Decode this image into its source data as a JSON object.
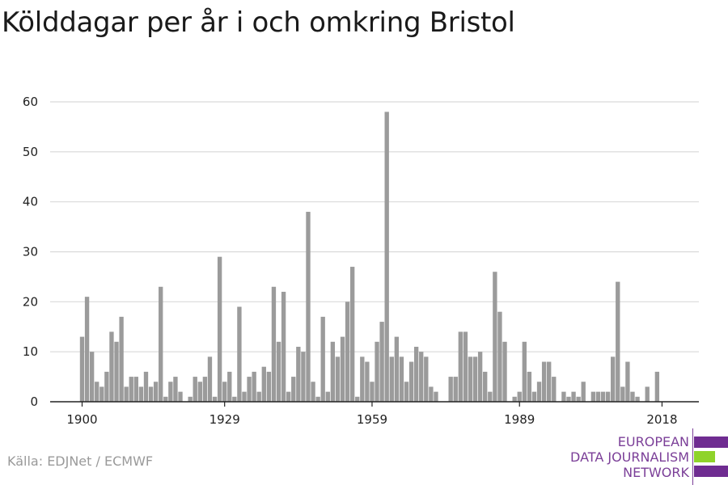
{
  "title": "Kölddagar per år i och omkring Bristol",
  "source": "Källa: EDJNet / ECMWF",
  "logo": {
    "lines": [
      "EUROPEAN",
      "DATA JOURNALISM",
      "NETWORK"
    ],
    "colors": {
      "purple": "#6f2c91",
      "green": "#8fd32a",
      "text": "#7b3f98"
    }
  },
  "colors": {
    "bar": "#9b9b9b",
    "grid": "#d9d9d9",
    "axis": "#222222",
    "text": "#222222"
  },
  "chart_data": {
    "type": "bar",
    "title": "Kölddagar per år i och omkring Bristol",
    "xlabel": "",
    "ylabel": "",
    "ylim": [
      0,
      60
    ],
    "yticks": [
      0,
      10,
      20,
      30,
      40,
      50,
      60
    ],
    "xticks": [
      1900,
      1929,
      1959,
      1989,
      2018
    ],
    "xlim": [
      1893.5,
      2025.5
    ],
    "grid": true,
    "x": [
      1900,
      1901,
      1902,
      1903,
      1904,
      1905,
      1906,
      1907,
      1908,
      1909,
      1910,
      1911,
      1912,
      1913,
      1914,
      1915,
      1916,
      1917,
      1918,
      1919,
      1920,
      1921,
      1922,
      1923,
      1924,
      1925,
      1926,
      1927,
      1928,
      1929,
      1930,
      1931,
      1932,
      1933,
      1934,
      1935,
      1936,
      1937,
      1938,
      1939,
      1940,
      1941,
      1942,
      1943,
      1944,
      1945,
      1946,
      1947,
      1948,
      1949,
      1950,
      1951,
      1952,
      1953,
      1954,
      1955,
      1956,
      1957,
      1958,
      1959,
      1960,
      1961,
      1962,
      1963,
      1964,
      1965,
      1966,
      1967,
      1968,
      1969,
      1970,
      1971,
      1972,
      1973,
      1974,
      1975,
      1976,
      1977,
      1978,
      1979,
      1980,
      1981,
      1982,
      1983,
      1984,
      1985,
      1986,
      1987,
      1988,
      1989,
      1990,
      1991,
      1992,
      1993,
      1994,
      1995,
      1996,
      1997,
      1998,
      1999,
      2000,
      2001,
      2002,
      2003,
      2004,
      2005,
      2006,
      2007,
      2008,
      2009,
      2010,
      2011,
      2012,
      2013,
      2014,
      2015,
      2016,
      2017,
      2018,
      2019
    ],
    "values": [
      13,
      21,
      10,
      4,
      3,
      6,
      14,
      12,
      17,
      3,
      5,
      5,
      3,
      6,
      3,
      4,
      23,
      1,
      4,
      5,
      2,
      0,
      1,
      5,
      4,
      5,
      9,
      1,
      29,
      4,
      6,
      1,
      19,
      2,
      5,
      6,
      2,
      7,
      6,
      23,
      12,
      22,
      2,
      5,
      11,
      10,
      38,
      4,
      1,
      17,
      2,
      12,
      9,
      13,
      20,
      27,
      1,
      9,
      8,
      4,
      12,
      16,
      58,
      9,
      13,
      9,
      4,
      8,
      11,
      10,
      9,
      3,
      2,
      0,
      0,
      5,
      5,
      14,
      14,
      9,
      9,
      10,
      6,
      2,
      26,
      18,
      12,
      0,
      1,
      2,
      12,
      6,
      2,
      4,
      8,
      8,
      5,
      0,
      2,
      1,
      2,
      1,
      4,
      0,
      2,
      2,
      2,
      2,
      9,
      24,
      3,
      8,
      2,
      1,
      0,
      3,
      0,
      6,
      0,
      0
    ]
  }
}
